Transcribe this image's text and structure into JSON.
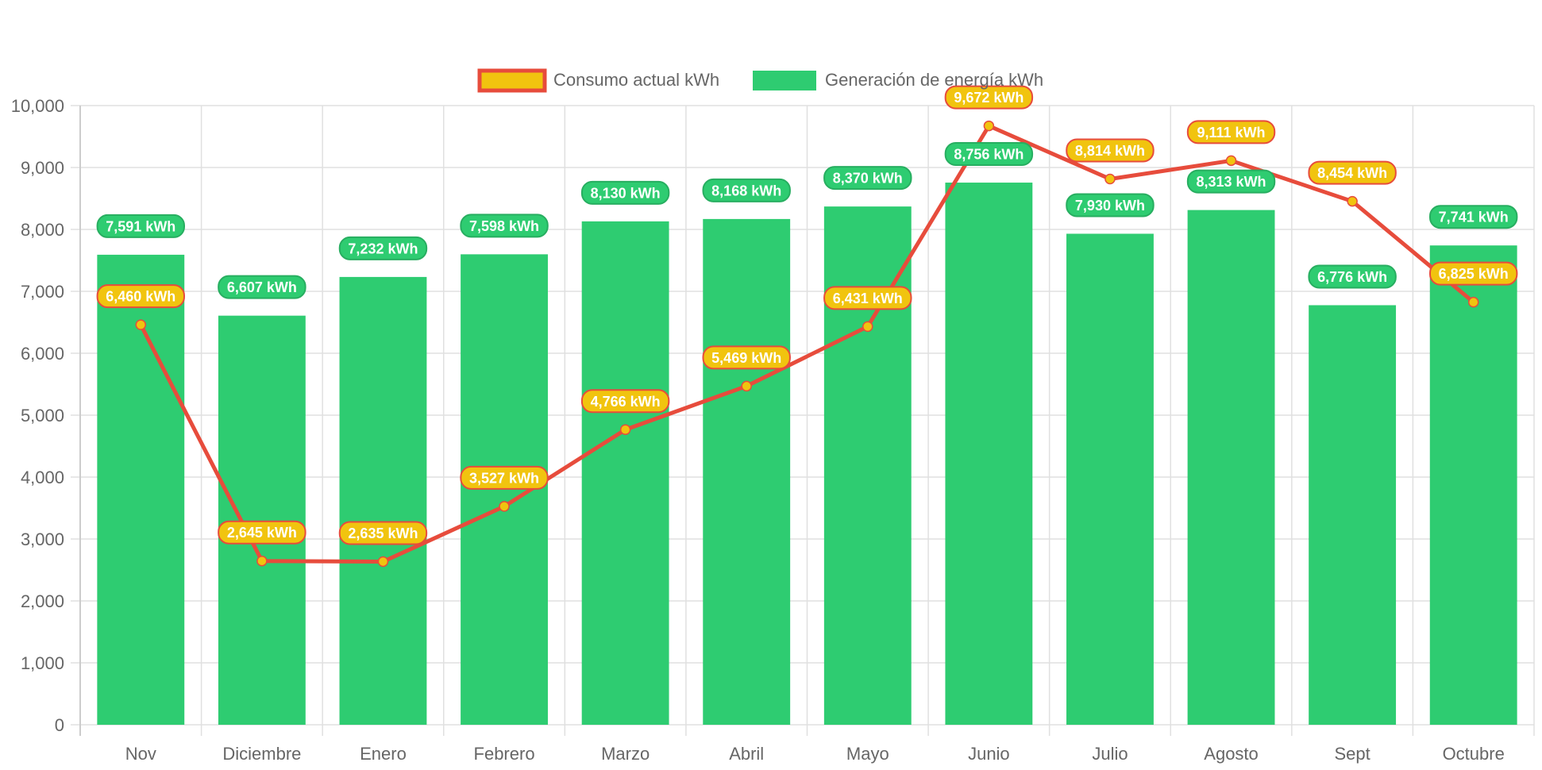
{
  "chart_data": {
    "type": "bar",
    "title": "",
    "xlabel": "",
    "ylabel": "",
    "ylim": [
      0,
      10000
    ],
    "ytick_step": 1000,
    "yticks": [
      "0",
      "1,000",
      "2,000",
      "3,000",
      "4,000",
      "5,000",
      "6,000",
      "7,000",
      "8,000",
      "9,000",
      "10,000"
    ],
    "grid": true,
    "legend_position": "top-center",
    "categories": [
      "Nov",
      "Diciembre",
      "Enero",
      "Febrero",
      "Marzo",
      "Abril",
      "Mayo",
      "Junio",
      "Julio",
      "Agosto",
      "Sept",
      "Octubre"
    ],
    "series": [
      {
        "name": "Consumo actual kWh",
        "type": "line",
        "color": "#e74c3c",
        "point_color": "#f1c40f",
        "label_bg": "#f1c40f",
        "label_border": "#e74c3c",
        "values": [
          6460,
          2645,
          2635,
          3527,
          4766,
          5469,
          6431,
          9672,
          8814,
          9111,
          8454,
          6825
        ],
        "labels": [
          "6,460 kWh",
          "2,645 kWh",
          "2,635 kWh",
          "3,527 kWh",
          "4,766 kWh",
          "5,469 kWh",
          "6,431 kWh",
          "9,672 kWh",
          "8,814 kWh",
          "9,111 kWh",
          "8,454 kWh",
          "6,825 kWh"
        ]
      },
      {
        "name": "Generación de energía kWh",
        "type": "bar",
        "color": "#2ecc71",
        "label_bg": "#2ecc71",
        "label_border": "#27ae60",
        "values": [
          7591,
          6607,
          7232,
          7598,
          8130,
          8168,
          8370,
          8756,
          7930,
          8313,
          6776,
          7741
        ],
        "labels": [
          "7,591 kWh",
          "6,607 kWh",
          "7,232 kWh",
          "7,598 kWh",
          "8,130 kWh",
          "8,168 kWh",
          "8,370 kWh",
          "8,756 kWh",
          "7,930 kWh",
          "8,313 kWh",
          "6,776 kWh",
          "7,741 kWh"
        ]
      }
    ]
  }
}
